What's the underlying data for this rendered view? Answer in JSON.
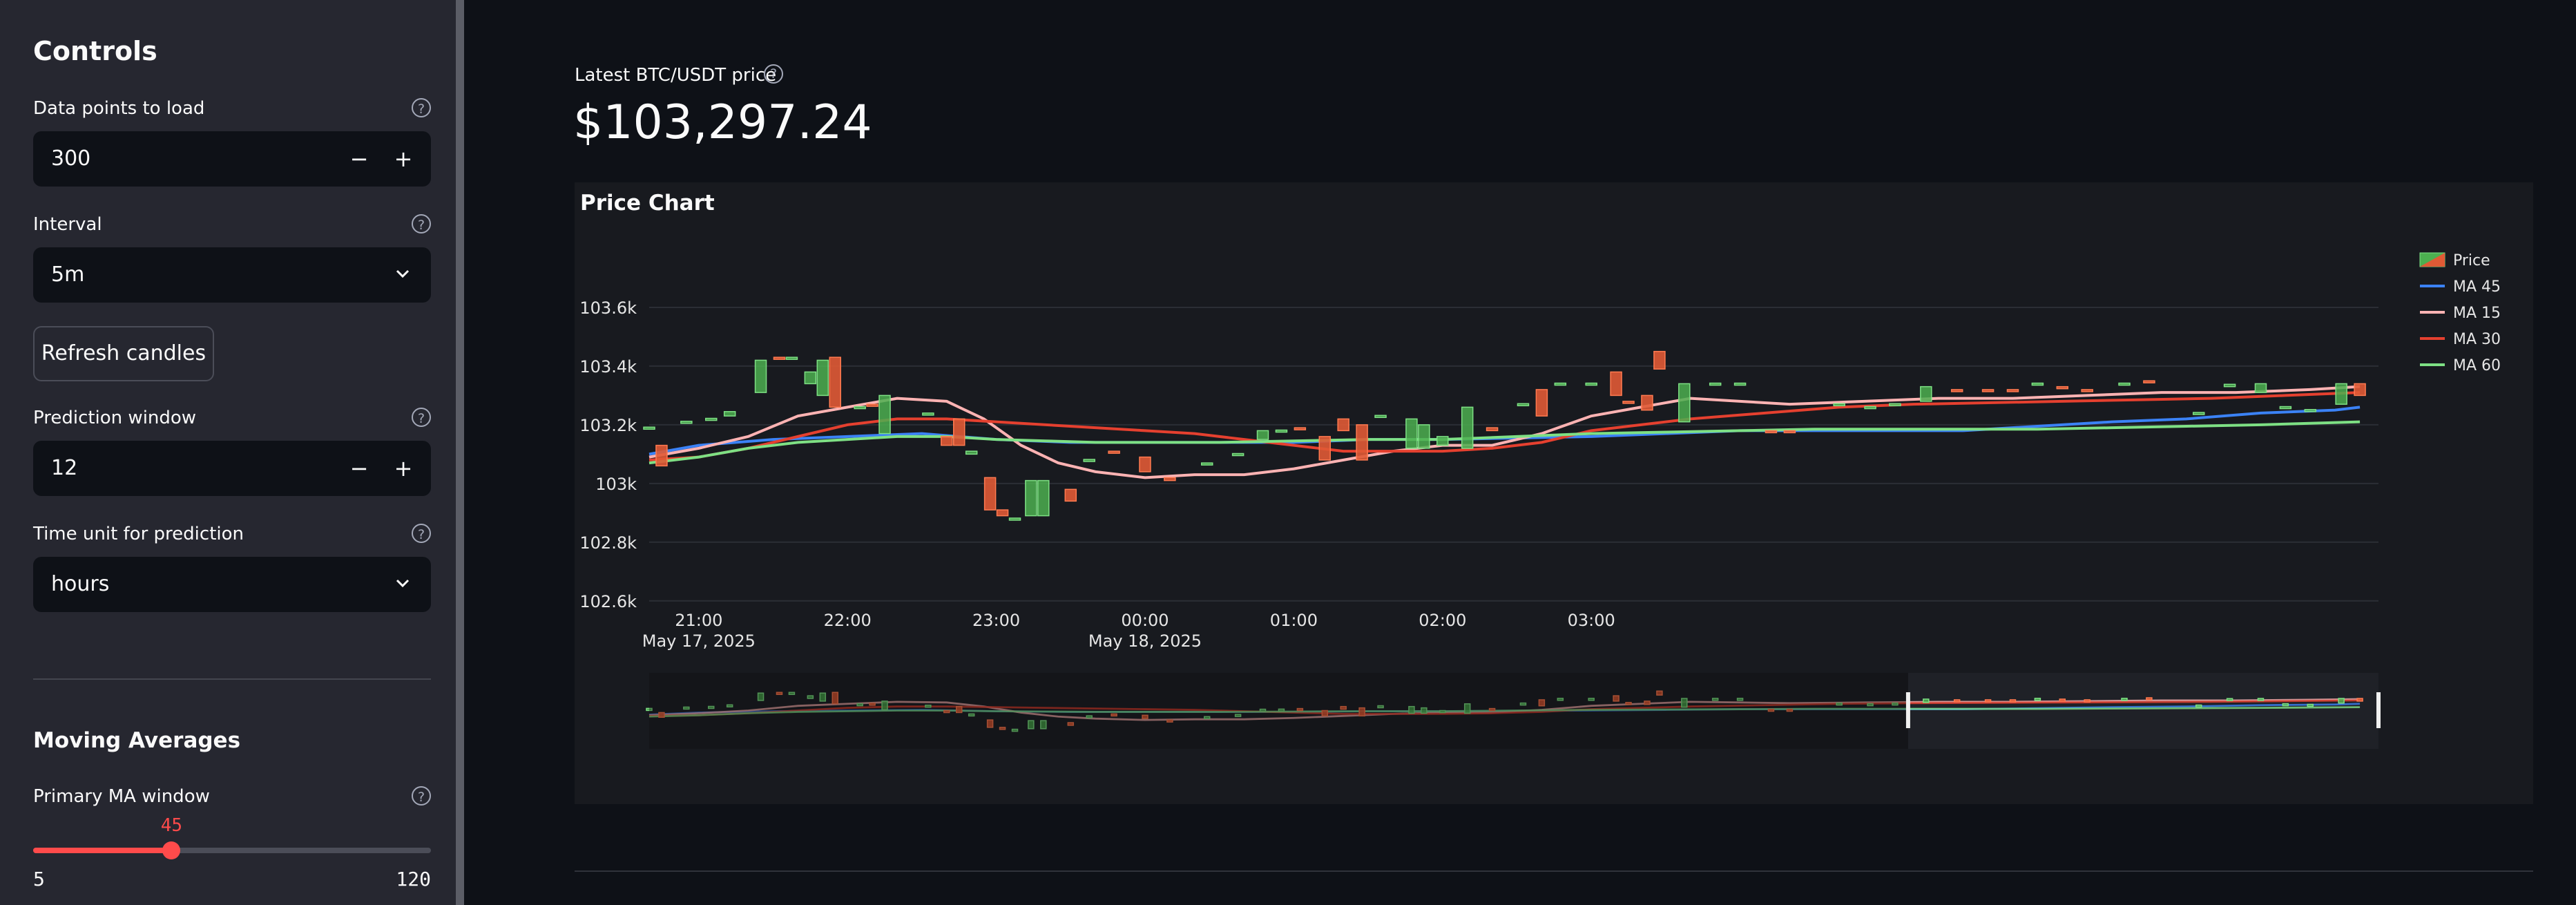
{
  "sidebar": {
    "title": "Controls",
    "data_points": {
      "label": "Data points to load",
      "value": "300",
      "minus": "−",
      "plus": "+"
    },
    "interval": {
      "label": "Interval",
      "value": "5m"
    },
    "refresh_label": "Refresh candles",
    "prediction_window": {
      "label": "Prediction window",
      "value": "12",
      "minus": "−",
      "plus": "+"
    },
    "time_unit": {
      "label": "Time unit for prediction",
      "value": "hours"
    },
    "moving_averages_title": "Moving Averages",
    "primary_ma": {
      "label": "Primary MA window",
      "value": 45,
      "min": 5,
      "max": 120,
      "value_text": "45",
      "min_text": "5",
      "max_text": "120"
    },
    "help_glyph": "?"
  },
  "metric": {
    "label": "Latest BTC/USDT price",
    "value": "$103,297.24"
  },
  "chart": {
    "title": "Price Chart"
  },
  "colors": {
    "accent": "#ff4b4b",
    "increasing": "#4caf50",
    "decreasing": "#e05a35",
    "ma45": "#3b82f6",
    "ma15": "#ffb3b3",
    "ma30": "#e5402f",
    "ma60": "#7ee084"
  },
  "chart_data": {
    "type": "candlestick",
    "title": "Price Chart",
    "y_ticks": [
      "103.6k",
      "103.4k",
      "103.2k",
      "103k",
      "102.8k",
      "102.6k"
    ],
    "y_tick_values": [
      103600,
      103400,
      103200,
      103000,
      102800,
      102600
    ],
    "ylim": [
      102590,
      103720
    ],
    "x_ticks": [
      {
        "label": "21:00",
        "sub": "May 17, 2025"
      },
      {
        "label": "22:00",
        "sub": ""
      },
      {
        "label": "23:00",
        "sub": ""
      },
      {
        "label": "00:00",
        "sub": "May 18, 2025"
      },
      {
        "label": "01:00",
        "sub": ""
      },
      {
        "label": "02:00",
        "sub": ""
      },
      {
        "label": "03:00",
        "sub": ""
      }
    ],
    "x_range_minutes": [
      -40,
      1355
    ],
    "x_tick_minutes": [
      0,
      120,
      240,
      360,
      480,
      600,
      720
    ],
    "legend": [
      "Price",
      "MA 45",
      "MA 15",
      "MA 30",
      "MA 60"
    ],
    "legend_position": "top-right",
    "grid": true,
    "candles": [
      {
        "t": -40,
        "o": 103190,
        "c": 103192
      },
      {
        "t": -30,
        "o": 103130,
        "c": 103060
      },
      {
        "t": -10,
        "o": 103210,
        "c": 103212
      },
      {
        "t": 10,
        "o": 103220,
        "c": 103222
      },
      {
        "t": 25,
        "o": 103230,
        "c": 103245
      },
      {
        "t": 50,
        "o": 103310,
        "c": 103420
      },
      {
        "t": 65,
        "o": 103430,
        "c": 103428
      },
      {
        "t": 75,
        "o": 103428,
        "c": 103430
      },
      {
        "t": 90,
        "o": 103340,
        "c": 103380
      },
      {
        "t": 100,
        "o": 103300,
        "c": 103420
      },
      {
        "t": 110,
        "o": 103430,
        "c": 103260
      },
      {
        "t": 130,
        "o": 103260,
        "c": 103262
      },
      {
        "t": 140,
        "o": 103270,
        "c": 103268
      },
      {
        "t": 150,
        "o": 103170,
        "c": 103300
      },
      {
        "t": 185,
        "o": 103240,
        "c": 103240
      },
      {
        "t": 200,
        "o": 103160,
        "c": 103130
      },
      {
        "t": 210,
        "o": 103220,
        "c": 103130
      },
      {
        "t": 220,
        "o": 103100,
        "c": 103110
      },
      {
        "t": 235,
        "o": 103020,
        "c": 102910
      },
      {
        "t": 245,
        "o": 102910,
        "c": 102890
      },
      {
        "t": 255,
        "o": 102880,
        "c": 102882
      },
      {
        "t": 268,
        "o": 102890,
        "c": 103010
      },
      {
        "t": 278,
        "o": 102890,
        "c": 103010
      },
      {
        "t": 300,
        "o": 102980,
        "c": 102940
      },
      {
        "t": 315,
        "o": 103080,
        "c": 103082
      },
      {
        "t": 335,
        "o": 103110,
        "c": 103108
      },
      {
        "t": 360,
        "o": 103090,
        "c": 103040
      },
      {
        "t": 380,
        "o": 103020,
        "c": 103010
      },
      {
        "t": 410,
        "o": 103070,
        "c": 103070
      },
      {
        "t": 435,
        "o": 103100,
        "c": 103102
      },
      {
        "t": 455,
        "o": 103150,
        "c": 103180
      },
      {
        "t": 470,
        "o": 103180,
        "c": 103182
      },
      {
        "t": 485,
        "o": 103190,
        "c": 103188
      },
      {
        "t": 505,
        "o": 103160,
        "c": 103080
      },
      {
        "t": 520,
        "o": 103220,
        "c": 103180
      },
      {
        "t": 535,
        "o": 103200,
        "c": 103080
      },
      {
        "t": 550,
        "o": 103230,
        "c": 103232
      },
      {
        "t": 575,
        "o": 103120,
        "c": 103220
      },
      {
        "t": 585,
        "o": 103120,
        "c": 103200
      },
      {
        "t": 600,
        "o": 103130,
        "c": 103160
      },
      {
        "t": 620,
        "o": 103120,
        "c": 103260
      },
      {
        "t": 640,
        "o": 103190,
        "c": 103180
      },
      {
        "t": 665,
        "o": 103270,
        "c": 103272
      },
      {
        "t": 680,
        "o": 103320,
        "c": 103230
      },
      {
        "t": 695,
        "o": 103340,
        "c": 103342
      },
      {
        "t": 720,
        "o": 103340,
        "c": 103342
      },
      {
        "t": 740,
        "o": 103380,
        "c": 103300
      },
      {
        "t": 750,
        "o": 103280,
        "c": 103278
      },
      {
        "t": 765,
        "o": 103300,
        "c": 103250
      },
      {
        "t": 775,
        "o": 103450,
        "c": 103390
      },
      {
        "t": 795,
        "o": 103210,
        "c": 103340
      },
      {
        "t": 820,
        "o": 103340,
        "c": 103342
      },
      {
        "t": 840,
        "o": 103340,
        "c": 103342
      },
      {
        "t": 865,
        "o": 103180,
        "c": 103178
      },
      {
        "t": 880,
        "o": 103180,
        "c": 103178
      },
      {
        "t": 920,
        "o": 103270,
        "c": 103272
      },
      {
        "t": 945,
        "o": 103260,
        "c": 103262
      },
      {
        "t": 965,
        "o": 103270,
        "c": 103272
      },
      {
        "t": 990,
        "o": 103280,
        "c": 103330
      },
      {
        "t": 1015,
        "o": 103320,
        "c": 103318
      },
      {
        "t": 1040,
        "o": 103320,
        "c": 103318
      },
      {
        "t": 1060,
        "o": 103320,
        "c": 103318
      },
      {
        "t": 1080,
        "o": 103340,
        "c": 103342
      },
      {
        "t": 1100,
        "o": 103330,
        "c": 103328
      },
      {
        "t": 1120,
        "o": 103320,
        "c": 103318
      },
      {
        "t": 1150,
        "o": 103340,
        "c": 103342
      },
      {
        "t": 1170,
        "o": 103350,
        "c": 103348
      },
      {
        "t": 1210,
        "o": 103240,
        "c": 103242
      },
      {
        "t": 1235,
        "o": 103330,
        "c": 103338
      },
      {
        "t": 1260,
        "o": 103310,
        "c": 103340
      },
      {
        "t": 1280,
        "o": 103260,
        "c": 103262
      },
      {
        "t": 1300,
        "o": 103250,
        "c": 103252
      },
      {
        "t": 1325,
        "o": 103270,
        "c": 103340
      },
      {
        "t": 1340,
        "o": 103340,
        "c": 103300
      }
    ],
    "series": [
      {
        "name": "MA 45",
        "x": [
          -40,
          0,
          60,
          120,
          180,
          240,
          300,
          360,
          420,
          480,
          540,
          600,
          660,
          720,
          780,
          840,
          900,
          960,
          1020,
          1080,
          1140,
          1200,
          1260,
          1320,
          1340
        ],
        "y": [
          103100,
          103130,
          103150,
          103160,
          103170,
          103150,
          103140,
          103140,
          103140,
          103140,
          103150,
          103150,
          103155,
          103160,
          103170,
          103180,
          103180,
          103180,
          103180,
          103195,
          103210,
          103220,
          103240,
          103250,
          103260
        ]
      },
      {
        "name": "MA 15",
        "x": [
          -40,
          0,
          40,
          80,
          120,
          160,
          200,
          230,
          260,
          290,
          320,
          360,
          400,
          440,
          480,
          520,
          560,
          600,
          640,
          680,
          720,
          760,
          800,
          840,
          880,
          940,
          1000,
          1060,
          1120,
          1180,
          1240,
          1300,
          1340
        ],
        "y": [
          103090,
          103120,
          103160,
          103230,
          103260,
          103290,
          103280,
          103220,
          103130,
          103070,
          103040,
          103020,
          103030,
          103030,
          103050,
          103080,
          103110,
          103130,
          103130,
          103170,
          103230,
          103260,
          103290,
          103280,
          103270,
          103280,
          103290,
          103290,
          103300,
          103310,
          103310,
          103320,
          103330
        ]
      },
      {
        "name": "MA 30",
        "x": [
          -40,
          0,
          40,
          80,
          120,
          160,
          200,
          240,
          280,
          320,
          360,
          400,
          440,
          480,
          520,
          560,
          600,
          640,
          680,
          720,
          760,
          800,
          860,
          920,
          980,
          1040,
          1100,
          1160,
          1220,
          1280,
          1340
        ],
        "y": [
          103080,
          103090,
          103120,
          103160,
          103200,
          103220,
          103220,
          103210,
          103200,
          103190,
          103180,
          103170,
          103150,
          103130,
          103110,
          103110,
          103110,
          103120,
          103140,
          103180,
          103200,
          103220,
          103240,
          103260,
          103270,
          103275,
          103280,
          103285,
          103290,
          103300,
          103310
        ]
      },
      {
        "name": "MA 60",
        "x": [
          -40,
          0,
          40,
          80,
          120,
          160,
          200,
          240,
          280,
          320,
          360,
          420,
          480,
          540,
          600,
          660,
          720,
          780,
          840,
          900,
          960,
          1020,
          1080,
          1140,
          1200,
          1260,
          1340
        ],
        "y": [
          103070,
          103090,
          103120,
          103140,
          103150,
          103160,
          103160,
          103150,
          103145,
          103140,
          103140,
          103140,
          103145,
          103150,
          103150,
          103160,
          103170,
          103175,
          103180,
          103185,
          103185,
          103185,
          103185,
          103190,
          103195,
          103200,
          103210
        ]
      }
    ]
  }
}
